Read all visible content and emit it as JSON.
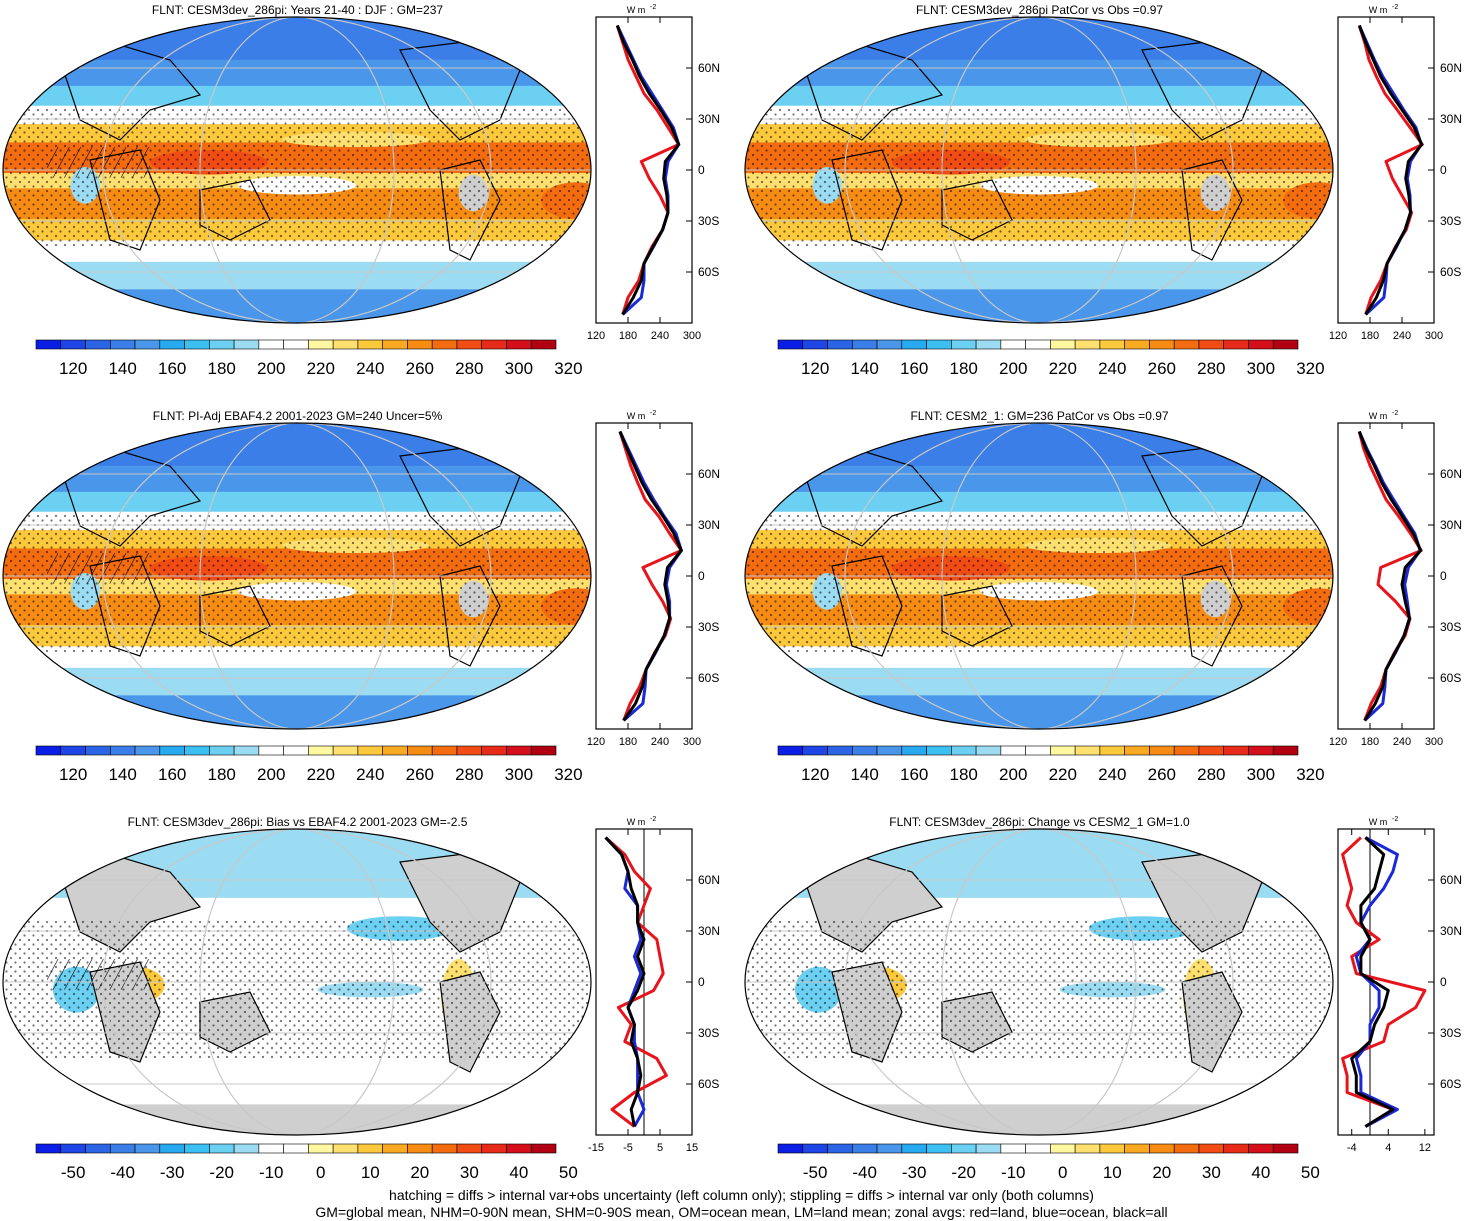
{
  "footer": {
    "line1": "hatching = diffs > internal var+obs uncertainty (left column only); stippling = diffs > internal var only (both columns)",
    "line2": "GM=global mean, NHM=0-90N mean, SHM=0-90S mean, OM=ocean mean, LM=land mean; zonal avgs: red=land, blue=ocean, black=all"
  },
  "chart_data": [
    {
      "type": "heatmap",
      "title": "FLNT: CESM3dev_286pi: Years 21-40 : DJF : GM=237",
      "colorbar": {
        "ticks": [
          "120",
          "140",
          "160",
          "180",
          "200",
          "220",
          "240",
          "260",
          "280",
          "300",
          "320"
        ]
      },
      "zonal": {
        "unit": "W m",
        "unit_sup": "-2",
        "x_ticks": [
          "120",
          "180",
          "240",
          "300"
        ],
        "xlim": [
          120,
          300
        ],
        "lat_ticks": [
          "60N",
          "30N",
          "0",
          "30S",
          "60S"
        ],
        "ylim": [
          -90,
          90
        ],
        "lat": [
          85,
          75,
          65,
          55,
          45,
          35,
          25,
          15,
          5,
          -5,
          -15,
          -25,
          -35,
          -45,
          -55,
          -65,
          -75,
          -85
        ],
        "series": [
          {
            "name": "land",
            "color": "#e8141c",
            "values": [
              160,
              170,
              180,
              195,
              210,
              235,
              255,
              275,
              205,
              220,
              240,
              255,
              245,
              225,
              210,
              200,
              180,
              170
            ]
          },
          {
            "name": "ocean",
            "color": "#1a28d8",
            "values": [
              160,
              175,
              190,
              205,
              225,
              245,
              265,
              275,
              255,
              250,
              255,
              255,
              245,
              228,
              210,
              210,
              205,
              170
            ]
          },
          {
            "name": "all",
            "color": "#000000",
            "values": [
              160,
              172,
              188,
              202,
              220,
              242,
              262,
              275,
              250,
              247,
              253,
              255,
              245,
              227,
              210,
              205,
              190,
              170
            ]
          }
        ]
      }
    },
    {
      "type": "heatmap",
      "title": "FLNT: CESM3dev_286pi PatCor vs Obs =0.97",
      "colorbar": {
        "ticks": [
          "120",
          "140",
          "160",
          "180",
          "200",
          "220",
          "240",
          "260",
          "280",
          "300",
          "320"
        ]
      },
      "zonal": {
        "unit": "W m",
        "unit_sup": "-2",
        "x_ticks": [
          "120",
          "180",
          "240",
          "300"
        ],
        "xlim": [
          120,
          300
        ],
        "lat_ticks": [
          "60N",
          "30N",
          "0",
          "30S",
          "60S"
        ],
        "ylim": [
          -90,
          90
        ],
        "lat": [
          85,
          75,
          65,
          55,
          45,
          35,
          25,
          15,
          5,
          -5,
          -15,
          -25,
          -35,
          -45,
          -55,
          -65,
          -75,
          -85
        ],
        "series": [
          {
            "name": "land",
            "color": "#e8141c",
            "values": [
              160,
              170,
              178,
              192,
              208,
              232,
              255,
              278,
              210,
              222,
              240,
              258,
              248,
              228,
              212,
              200,
              182,
              172
            ]
          },
          {
            "name": "ocean",
            "color": "#1a28d8",
            "values": [
              160,
              174,
              188,
              204,
              224,
              244,
              266,
              276,
              256,
              250,
              255,
              256,
              246,
              230,
              212,
              210,
              206,
              172
            ]
          },
          {
            "name": "all",
            "color": "#000000",
            "values": [
              160,
              172,
              186,
              200,
              219,
              241,
              263,
              277,
              252,
              247,
              253,
              256,
              246,
              229,
              212,
              205,
              192,
              172
            ]
          }
        ]
      }
    },
    {
      "type": "heatmap",
      "title": "FLNT: PI-Adj EBAF4.2 2001-2023 GM=240 Uncer=5%",
      "colorbar": {
        "ticks": [
          "120",
          "140",
          "160",
          "180",
          "200",
          "220",
          "240",
          "260",
          "280",
          "300",
          "320"
        ]
      },
      "zonal": {
        "unit": "W m",
        "unit_sup": "-2",
        "x_ticks": [
          "120",
          "180",
          "240",
          "300"
        ],
        "xlim": [
          120,
          300
        ],
        "lat_ticks": [
          "60N",
          "30N",
          "0",
          "30S",
          "60S"
        ],
        "ylim": [
          -90,
          90
        ],
        "lat": [
          85,
          75,
          65,
          55,
          45,
          35,
          25,
          15,
          5,
          -5,
          -15,
          -25,
          -35,
          -45,
          -55,
          -65,
          -75,
          -85
        ],
        "series": [
          {
            "name": "land",
            "color": "#e8141c",
            "values": [
              165,
              175,
              185,
              198,
              212,
              238,
              258,
              280,
              208,
              225,
              245,
              260,
              250,
              230,
              214,
              202,
              184,
              172
            ]
          },
          {
            "name": "ocean",
            "color": "#1a28d8",
            "values": [
              165,
              180,
              195,
              210,
              228,
              248,
              270,
              280,
              258,
              252,
              258,
              258,
              248,
              232,
              214,
              212,
              208,
              172
            ]
          },
          {
            "name": "all",
            "color": "#000000",
            "values": [
              165,
              178,
              192,
              206,
              224,
              246,
              266,
              280,
              254,
              249,
              255,
              258,
              248,
              231,
              214,
              207,
              194,
              172
            ]
          }
        ]
      }
    },
    {
      "type": "heatmap",
      "title": "FLNT: CESM2_1: GM=236 PatCor vs Obs =0.97",
      "colorbar": {
        "ticks": [
          "120",
          "140",
          "160",
          "180",
          "200",
          "220",
          "240",
          "260",
          "280",
          "300",
          "320"
        ]
      },
      "zonal": {
        "unit": "W m",
        "unit_sup": "-2",
        "x_ticks": [
          "120",
          "180",
          "240",
          "300"
        ],
        "xlim": [
          120,
          300
        ],
        "lat_ticks": [
          "60N",
          "30N",
          "0",
          "30S",
          "60S"
        ],
        "ylim": [
          -90,
          90
        ],
        "lat": [
          85,
          75,
          65,
          55,
          45,
          35,
          25,
          15,
          5,
          -5,
          -15,
          -25,
          -35,
          -45,
          -55,
          -65,
          -75,
          -85
        ],
        "series": [
          {
            "name": "land",
            "color": "#e8141c",
            "values": [
              160,
              168,
              180,
              195,
              210,
              234,
              256,
              276,
              200,
              195,
              228,
              255,
              246,
              226,
              210,
              200,
              182,
              170
            ]
          },
          {
            "name": "ocean",
            "color": "#1a28d8",
            "values": [
              160,
              174,
              190,
              205,
              224,
              244,
              264,
              274,
              252,
              245,
              250,
              254,
              244,
              228,
              210,
              208,
              204,
              170
            ]
          },
          {
            "name": "all",
            "color": "#000000",
            "values": [
              160,
              172,
              188,
              202,
              220,
              241,
              261,
              275,
              246,
              240,
              246,
              254,
              244,
              227,
              210,
              204,
              190,
              170
            ]
          }
        ]
      }
    },
    {
      "type": "heatmap",
      "title": "FLNT: CESM3dev_286pi: Bias vs EBAF4.2 2001-2023 GM=-2.5",
      "colorbar": {
        "ticks": [
          "-50",
          "-40",
          "-30",
          "-20",
          "-10",
          "0",
          "10",
          "20",
          "30",
          "40",
          "50"
        ]
      },
      "zonal": {
        "unit": "W m",
        "unit_sup": "-2",
        "x_ticks": [
          "-15",
          "-5",
          "5",
          "15"
        ],
        "xlim": [
          -15,
          15
        ],
        "lat_ticks": [
          "60N",
          "30N",
          "0",
          "30S",
          "60S"
        ],
        "ylim": [
          -90,
          90
        ],
        "lat": [
          85,
          75,
          65,
          55,
          45,
          35,
          25,
          15,
          5,
          -5,
          -15,
          -25,
          -35,
          -45,
          -55,
          -65,
          -75,
          -85
        ],
        "series": [
          {
            "name": "land",
            "color": "#e8141c",
            "values": [
              -12,
              -6,
              -3,
              2,
              0,
              -2,
              4,
              5,
              6,
              3,
              -8,
              -4,
              -6,
              4,
              7,
              -3,
              -10,
              -3
            ]
          },
          {
            "name": "ocean",
            "color": "#1a28d8",
            "values": [
              -12,
              -7,
              -5,
              -6,
              -2,
              -2,
              -1,
              -3,
              -1,
              -3,
              -5,
              -3,
              -3,
              -2,
              -2,
              -2,
              0,
              -3
            ]
          },
          {
            "name": "all",
            "color": "#000000",
            "values": [
              -12,
              -7,
              -5,
              -4,
              -2,
              -2,
              0,
              -2,
              0,
              -2,
              -5,
              -3,
              -4,
              -2,
              -1,
              -2,
              -4,
              -3
            ]
          }
        ]
      }
    },
    {
      "type": "heatmap",
      "title": "FLNT: CESM3dev_286pi: Change vs CESM2_1 GM=1.0",
      "colorbar": {
        "ticks": [
          "-50",
          "-40",
          "-30",
          "-20",
          "-10",
          "0",
          "10",
          "20",
          "30",
          "40",
          "50"
        ]
      },
      "zonal": {
        "unit": "W m",
        "unit_sup": "-2",
        "x_ticks": [
          "-4",
          "4",
          "12"
        ],
        "xlim": [
          -7,
          14
        ],
        "lat_ticks": [
          "60N",
          "30N",
          "0",
          "30S",
          "60S"
        ],
        "ylim": [
          -90,
          90
        ],
        "lat": [
          85,
          75,
          65,
          55,
          45,
          35,
          25,
          15,
          5,
          -5,
          -15,
          -25,
          -35,
          -45,
          -55,
          -65,
          -75,
          -85
        ],
        "series": [
          {
            "name": "land",
            "color": "#e8141c",
            "values": [
              -2,
              -6,
              -5,
              -4,
              -5,
              -3,
              2,
              -4,
              -3,
              12,
              10,
              4,
              3,
              -6,
              -5,
              -5,
              5,
              -1
            ]
          },
          {
            "name": "ocean",
            "color": "#1a28d8",
            "values": [
              -1,
              6,
              5,
              3,
              0,
              -2,
              0,
              -3,
              -2,
              2,
              2,
              0,
              0,
              -3,
              -2,
              -2,
              6,
              -1
            ]
          },
          {
            "name": "all",
            "color": "#000000",
            "values": [
              -1,
              3,
              2,
              1,
              -2,
              -2,
              0,
              -2,
              -2,
              4,
              3,
              1,
              0,
              -4,
              -3,
              -3,
              5,
              -1
            ]
          }
        ]
      }
    }
  ]
}
